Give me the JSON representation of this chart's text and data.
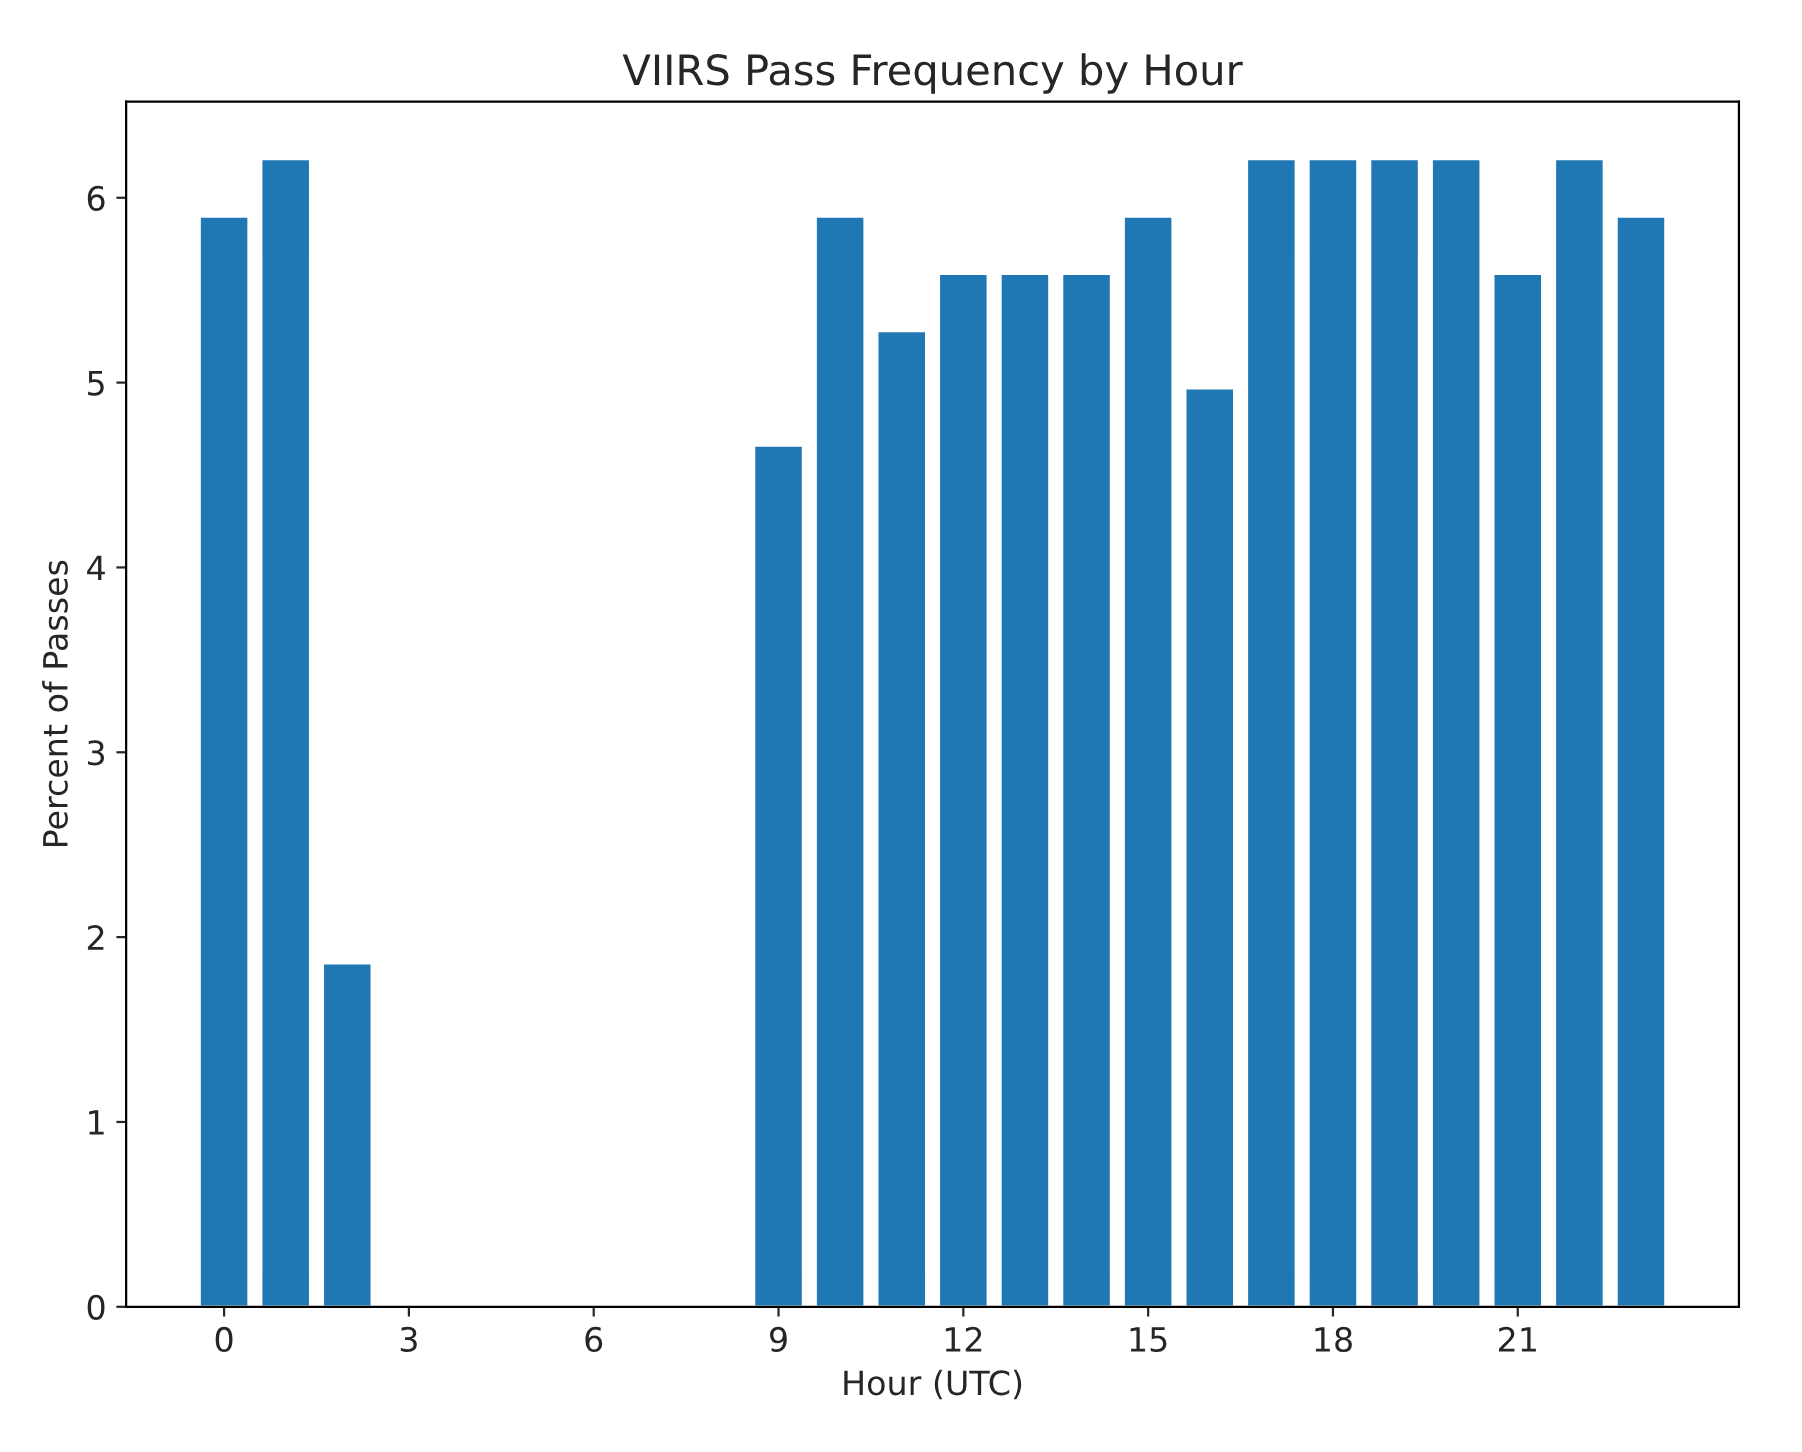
{
  "chart_data": {
    "type": "bar",
    "title": "VIIRS Pass Frequency by Hour",
    "xlabel": "Hour (UTC)",
    "ylabel": "Percent of Passes",
    "x": [
      0,
      1,
      2,
      3,
      4,
      5,
      6,
      7,
      8,
      9,
      10,
      11,
      12,
      13,
      14,
      15,
      16,
      17,
      18,
      19,
      20,
      21,
      22,
      23
    ],
    "values": [
      5.9,
      6.21,
      1.86,
      null,
      null,
      null,
      null,
      null,
      null,
      4.66,
      5.9,
      5.28,
      5.59,
      5.59,
      5.59,
      5.9,
      4.97,
      6.21,
      6.21,
      6.21,
      6.21,
      5.59,
      6.21,
      5.9
    ],
    "color": "#1f77b4",
    "xlim": [
      -1.59,
      24.59
    ],
    "xticks": [
      0,
      3,
      6,
      9,
      12,
      15,
      18,
      21
    ],
    "ylim": [
      0,
      6.52
    ],
    "yticks": [
      0,
      1,
      2,
      3,
      4,
      5,
      6
    ],
    "grid": false
  }
}
